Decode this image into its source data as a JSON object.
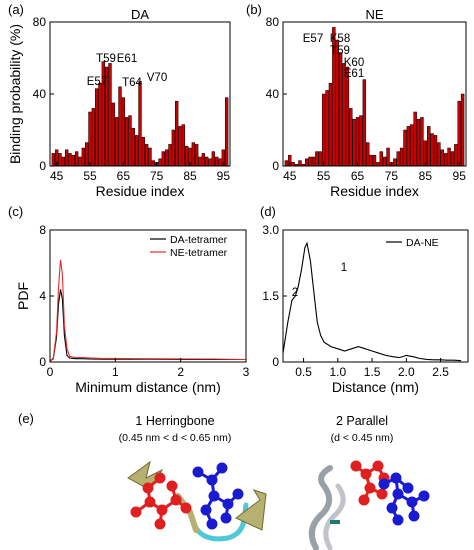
{
  "chart_data": [
    {
      "panel": "(a)",
      "type": "bar",
      "title": "DA",
      "xlabel": "Residue index",
      "ylabel": "Binding probability (%)",
      "ylim": [
        0,
        80
      ],
      "xlim": [
        43,
        97
      ],
      "yticks": [
        "0",
        "40",
        "80"
      ],
      "xticks": [
        "45",
        "55",
        "65",
        "75",
        "85",
        "95"
      ],
      "x": [
        44,
        45,
        46,
        47,
        48,
        49,
        50,
        51,
        52,
        53,
        54,
        55,
        56,
        57,
        58,
        59,
        60,
        61,
        62,
        63,
        64,
        65,
        66,
        67,
        68,
        69,
        70,
        71,
        72,
        73,
        74,
        75,
        76,
        77,
        78,
        79,
        80,
        81,
        82,
        83,
        84,
        85,
        86,
        87,
        88,
        89,
        90,
        91,
        92,
        93,
        94,
        95,
        96
      ],
      "values": [
        7,
        9,
        7,
        5,
        9,
        7,
        6,
        8,
        5,
        10,
        13,
        30,
        32,
        43,
        46,
        58,
        55,
        57,
        35,
        27,
        44,
        38,
        27,
        28,
        21,
        17,
        47,
        16,
        12,
        10,
        3,
        2,
        4,
        8,
        9,
        12,
        20,
        36,
        22,
        23,
        11,
        10,
        13,
        12,
        5,
        7,
        5,
        4,
        8,
        5,
        4,
        9,
        38
      ],
      "annotations": [
        "E57",
        "T59",
        "E61",
        "T64",
        "V70"
      ],
      "colors": {
        "bar": "#cc0000",
        "edge": "#000000"
      }
    },
    {
      "panel": "(b)",
      "type": "bar",
      "title": "NE",
      "xlabel": "Residue index",
      "ylabel": "",
      "ylim": [
        0,
        80
      ],
      "xlim": [
        43,
        97
      ],
      "yticks": [
        "0",
        "40",
        "80"
      ],
      "xticks": [
        "45",
        "55",
        "65",
        "75",
        "85",
        "95"
      ],
      "x": [
        44,
        45,
        46,
        47,
        48,
        49,
        50,
        51,
        52,
        53,
        54,
        55,
        56,
        57,
        58,
        59,
        60,
        61,
        62,
        63,
        64,
        65,
        66,
        67,
        68,
        69,
        70,
        71,
        72,
        73,
        74,
        75,
        76,
        77,
        78,
        79,
        80,
        81,
        82,
        83,
        84,
        85,
        86,
        87,
        88,
        89,
        90,
        91,
        92,
        93,
        94,
        95,
        96
      ],
      "values": [
        3,
        6,
        2,
        1,
        3,
        1,
        4,
        5,
        5,
        8,
        8,
        40,
        42,
        46,
        77,
        70,
        63,
        57,
        55,
        32,
        26,
        27,
        28,
        48,
        13,
        6,
        6,
        2,
        8,
        5,
        10,
        2,
        4,
        8,
        10,
        20,
        22,
        23,
        30,
        26,
        27,
        14,
        22,
        18,
        17,
        13,
        9,
        7,
        10,
        8,
        12,
        36,
        40
      ],
      "annotations": [
        "E57",
        "K58",
        "T59",
        "K60",
        "E61"
      ],
      "colors": {
        "bar": "#cc0000",
        "edge": "#000000"
      }
    },
    {
      "panel": "(c)",
      "type": "line",
      "title": "",
      "xlabel": "Minimum distance (nm)",
      "ylabel": "PDF",
      "xlim": [
        0,
        3
      ],
      "ylim": [
        0,
        8
      ],
      "xticks": [
        "0",
        "1",
        "2",
        "3"
      ],
      "yticks": [
        "0",
        "4",
        "8"
      ],
      "legend": "top-right",
      "series": [
        {
          "name": "DA-tetramer",
          "color": "#000000",
          "x": [
            0.0,
            0.05,
            0.1,
            0.13,
            0.16,
            0.19,
            0.22,
            0.26,
            0.3,
            0.35,
            0.4,
            0.5,
            0.6,
            0.8,
            1.0,
            1.5,
            2.0,
            2.5,
            3.0
          ],
          "y": [
            0.05,
            0.2,
            1.5,
            3.5,
            4.4,
            3.8,
            1.6,
            0.4,
            0.25,
            0.22,
            0.2,
            0.2,
            0.18,
            0.17,
            0.17,
            0.17,
            0.16,
            0.15,
            0.15
          ]
        },
        {
          "name": "NE-tetramer",
          "color": "#e03030",
          "x": [
            0.0,
            0.05,
            0.1,
            0.13,
            0.16,
            0.19,
            0.22,
            0.26,
            0.3,
            0.35,
            0.4,
            0.5,
            0.6,
            0.8,
            1.0,
            1.5,
            2.0,
            2.5,
            3.0
          ],
          "y": [
            0.05,
            0.25,
            1.8,
            4.5,
            6.2,
            5.3,
            2.2,
            0.8,
            0.35,
            0.3,
            0.28,
            0.27,
            0.25,
            0.22,
            0.22,
            0.2,
            0.19,
            0.18,
            0.15
          ]
        }
      ]
    },
    {
      "panel": "(d)",
      "type": "line",
      "title": "",
      "xlabel": "Distance (nm)",
      "ylabel": "",
      "xlim": [
        0.2,
        2.9
      ],
      "ylim": [
        0,
        3
      ],
      "xticks": [
        "0.5",
        "1.0",
        "1.5",
        "2.0",
        "2.5"
      ],
      "yticks": [
        "0",
        "1.5",
        "3.0"
      ],
      "legend": "top-right",
      "annotations": [
        "1",
        "2"
      ],
      "series": [
        {
          "name": "DA-NE",
          "color": "#000000",
          "x": [
            0.2,
            0.27,
            0.33,
            0.38,
            0.42,
            0.47,
            0.52,
            0.55,
            0.6,
            0.65,
            0.7,
            0.75,
            0.8,
            0.9,
            1.0,
            1.1,
            1.2,
            1.3,
            1.4,
            1.5,
            1.6,
            1.7,
            1.8,
            1.9,
            2.0,
            2.1,
            2.2,
            2.3,
            2.4,
            2.5,
            2.6,
            2.7,
            2.8
          ],
          "y": [
            0.2,
            0.9,
            1.4,
            1.5,
            1.7,
            2.1,
            2.6,
            2.7,
            2.3,
            1.6,
            0.9,
            0.6,
            0.45,
            0.35,
            0.3,
            0.25,
            0.3,
            0.35,
            0.3,
            0.25,
            0.2,
            0.15,
            0.12,
            0.1,
            0.15,
            0.12,
            0.08,
            0.06,
            0.05,
            0.05,
            0.04,
            0.04,
            0.03
          ]
        }
      ]
    }
  ],
  "panel_e": {
    "label": "(e)",
    "herringbone": {
      "title": "1  Herringbone",
      "subtitle": "(0.45 nm < d < 0.65 nm)"
    },
    "parallel": {
      "title": "2  Parallel",
      "subtitle": "(d < 0.45 nm)"
    },
    "colors": {
      "red_molecule": "#e02020",
      "blue_molecule": "#1a1ad0",
      "ribbon": "#b8b070",
      "coil": "#50c8d8"
    }
  }
}
